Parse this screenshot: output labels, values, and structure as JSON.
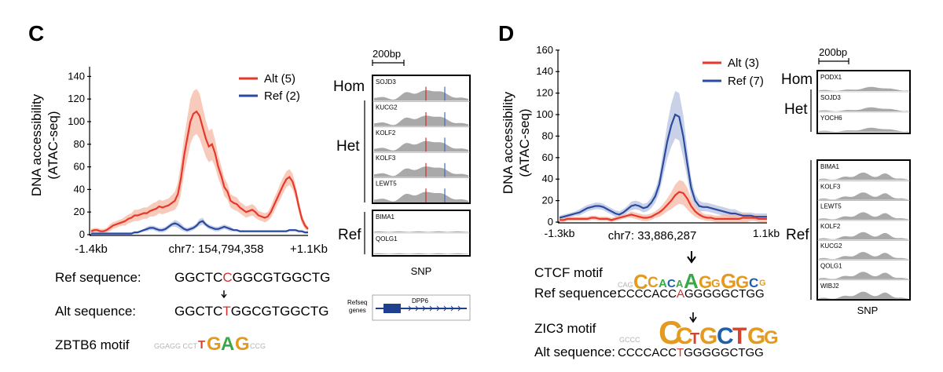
{
  "panel_labels": {
    "c": "C",
    "d": "D"
  },
  "chart_data": [
    {
      "type": "line",
      "panel": "C",
      "ylabel_line1": "DNA accessibility",
      "ylabel_line2": "(ATAC-seq)",
      "ylim": [
        0,
        150
      ],
      "yticks": [
        0,
        20,
        40,
        60,
        80,
        100,
        120,
        140
      ],
      "xtick_labels": [
        "-1.4kb",
        "chr7: 154,794,358",
        "+1.1Kb"
      ],
      "legend_position": "top-right",
      "series": [
        {
          "name": "Alt (5)",
          "color": "#e8382a",
          "band_color": "#f6b8a4",
          "values": [
            3,
            4,
            4,
            3,
            3,
            4,
            6,
            8,
            9,
            10,
            11,
            12,
            14,
            15,
            17,
            17,
            18,
            19,
            19,
            21,
            22,
            23,
            25,
            24,
            25,
            26,
            28,
            30,
            36,
            50,
            70,
            85,
            100,
            107,
            109,
            105,
            95,
            85,
            78,
            80,
            72,
            60,
            52,
            42,
            38,
            30,
            28,
            27,
            24,
            22,
            20,
            21,
            22,
            20,
            17,
            16,
            15,
            16,
            20,
            26,
            32,
            38,
            44,
            49,
            51,
            47,
            38,
            25,
            14,
            8,
            5
          ],
          "err": [
            2,
            2,
            2,
            2,
            2,
            2,
            3,
            3,
            3,
            3,
            3,
            4,
            4,
            4,
            5,
            5,
            5,
            5,
            5,
            5,
            6,
            6,
            6,
            6,
            6,
            6,
            7,
            8,
            10,
            14,
            16,
            18,
            20,
            20,
            20,
            20,
            18,
            16,
            14,
            14,
            12,
            10,
            9,
            8,
            7,
            6,
            6,
            6,
            5,
            5,
            5,
            5,
            5,
            5,
            4,
            4,
            4,
            4,
            5,
            6,
            6,
            7,
            7,
            7,
            7,
            7,
            6,
            5,
            4,
            3,
            2
          ]
        },
        {
          "name": "Ref (2)",
          "color": "#2b4ba0",
          "band_color": "#b7c2e0",
          "values": [
            1,
            1,
            1,
            1,
            1,
            1,
            1,
            1,
            1,
            1,
            1,
            1,
            1,
            1,
            2,
            2,
            3,
            4,
            5,
            6,
            6,
            5,
            4,
            4,
            5,
            7,
            9,
            10,
            9,
            7,
            5,
            4,
            5,
            6,
            8,
            11,
            12,
            9,
            7,
            6,
            5,
            5,
            6,
            7,
            6,
            5,
            4,
            4,
            3,
            3,
            3,
            3,
            3,
            3,
            3,
            3,
            3,
            3,
            3,
            3,
            3,
            3,
            3,
            3,
            4,
            4,
            4,
            3,
            3,
            2,
            2
          ],
          "err": [
            1,
            1,
            1,
            1,
            1,
            1,
            1,
            1,
            1,
            1,
            1,
            1,
            1,
            1,
            1,
            1,
            1,
            1,
            2,
            2,
            2,
            2,
            2,
            2,
            2,
            2,
            2,
            3,
            3,
            3,
            2,
            2,
            2,
            2,
            2,
            3,
            3,
            2,
            2,
            2,
            2,
            2,
            2,
            2,
            2,
            2,
            1,
            1,
            1,
            1,
            1,
            1,
            1,
            1,
            1,
            1,
            1,
            1,
            1,
            1,
            1,
            1,
            1,
            1,
            1,
            1,
            1,
            1,
            1,
            1,
            1
          ]
        }
      ]
    },
    {
      "type": "line",
      "panel": "D",
      "ylabel_line1": "DNA accessibility",
      "ylabel_line2": "(ATAC-seq)",
      "ylim": [
        0,
        165
      ],
      "yticks": [
        0,
        20,
        40,
        60,
        80,
        100,
        120,
        140,
        160
      ],
      "xtick_labels": [
        "-1.3kb",
        "chr7: 33,886,287",
        "1.1kb"
      ],
      "legend_position": "top-right",
      "series": [
        {
          "name": "Alt (3)",
          "color": "#e8382a",
          "band_color": "#f6b8a4",
          "values": [
            2,
            2,
            3,
            3,
            3,
            3,
            3,
            3,
            4,
            4,
            3,
            3,
            3,
            2,
            3,
            4,
            5,
            6,
            7,
            6,
            5,
            4,
            4,
            5,
            7,
            9,
            12,
            16,
            20,
            25,
            28,
            27,
            22,
            15,
            10,
            7,
            5,
            4,
            4,
            3,
            3,
            3,
            3,
            3,
            3,
            3,
            4,
            4,
            4,
            4,
            3,
            3,
            3
          ],
          "err": [
            2,
            2,
            2,
            2,
            2,
            2,
            2,
            2,
            2,
            2,
            2,
            2,
            2,
            2,
            2,
            2,
            2,
            2,
            3,
            3,
            3,
            3,
            3,
            3,
            3,
            4,
            5,
            6,
            8,
            10,
            11,
            11,
            10,
            7,
            5,
            4,
            3,
            3,
            3,
            3,
            3,
            4,
            4,
            5,
            5,
            5,
            4,
            4,
            3,
            3,
            3,
            3,
            3
          ]
        },
        {
          "name": "Ref (7)",
          "color": "#2b4ba0",
          "band_color": "#b7c2e0",
          "values": [
            4,
            5,
            6,
            7,
            8,
            9,
            11,
            13,
            14,
            15,
            15,
            14,
            12,
            10,
            8,
            7,
            9,
            12,
            15,
            16,
            15,
            13,
            14,
            18,
            24,
            35,
            55,
            75,
            90,
            100,
            98,
            80,
            55,
            32,
            20,
            15,
            14,
            14,
            13,
            12,
            11,
            10,
            9,
            8,
            8,
            7,
            6,
            6,
            6,
            5,
            5,
            5,
            5
          ],
          "err": [
            2,
            2,
            2,
            2,
            2,
            3,
            3,
            3,
            3,
            3,
            3,
            3,
            3,
            3,
            3,
            3,
            3,
            3,
            4,
            4,
            4,
            4,
            4,
            5,
            6,
            8,
            12,
            16,
            20,
            22,
            22,
            20,
            14,
            9,
            6,
            5,
            4,
            4,
            4,
            4,
            4,
            4,
            4,
            4,
            4,
            3,
            3,
            3,
            3,
            3,
            3,
            3,
            3
          ]
        }
      ]
    }
  ],
  "browser_c": {
    "scale": "200bp",
    "groups": [
      "Hom",
      "Het",
      "Ref"
    ],
    "tracks_top": [
      "SOJD3",
      "KUCG2",
      "KOLF2",
      "KOLF3",
      "LEWT5"
    ],
    "tracks_ref": [
      "BIMA1",
      "QOLG1"
    ],
    "snp_label": "SNP",
    "refseq_label_line1": "Refseq",
    "refseq_label_line2": "genes",
    "gene": "DPP6"
  },
  "browser_d": {
    "scale": "200bp",
    "groups": [
      "Hom",
      "Het",
      "Ref"
    ],
    "tracks_top": [
      "PODX1",
      "SOJD3",
      "YOCH6"
    ],
    "tracks_ref": [
      "BIMA1",
      "KOLF3",
      "LEWT5",
      "KOLF2",
      "KUCG2",
      "QOLG1",
      "WIBJ2"
    ],
    "snp_label": "SNP"
  },
  "sequences_c": {
    "ref_label": "Ref sequence:",
    "ref_prefix": "GGCTC",
    "ref_snp": "C",
    "ref_suffix": "GGCGTGGCTG",
    "alt_label": "Alt sequence:",
    "alt_prefix": "GGCTC",
    "alt_snp": "T",
    "alt_suffix": "GGCGTGGCTG",
    "motif_label": "ZBTB6 motif",
    "motif_letters": "TGAG"
  },
  "sequences_d": {
    "ctcf_label": "CTCF motif",
    "ctcf_letters": "CCACCAGGGGGCGG",
    "ref_label": "Ref sequence:",
    "ref_prefix": "CCCCACC",
    "ref_snp": "A",
    "ref_suffix": "GGGGGCTGG",
    "zic_label": "ZIC3 motif",
    "zic_letters": "CCTGCTGG",
    "alt_label": "Alt sequence:",
    "alt_prefix": "CCCCACC",
    "alt_snp": "T",
    "alt_suffix": "GGGGGCTGG"
  },
  "colors": {
    "alt": "#e8382a",
    "ref": "#2b4ba0",
    "track_fill": "#a9a9a9",
    "snp_red": "#d0312d",
    "gene_blue": "#1f3f8f"
  }
}
